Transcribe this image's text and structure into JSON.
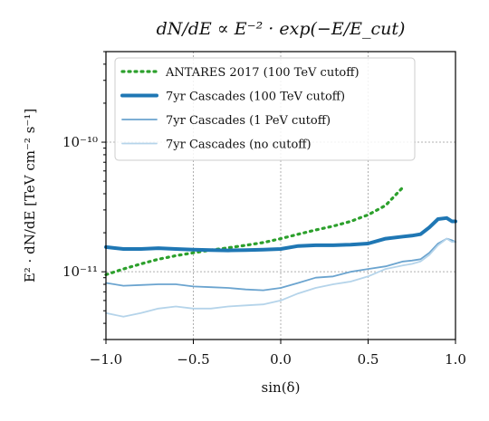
{
  "chart_data": {
    "type": "line",
    "title": "dN/dE ∝ E⁻² · exp(−E/E_cut)",
    "xlabel": "sin(δ)",
    "ylabel": "E² · dN/dE  [TeV cm⁻² s⁻¹]",
    "xlim": [
      -1.0,
      1.0
    ],
    "ylim": [
      3e-12,
      5e-10
    ],
    "yscale": "log",
    "grid": true,
    "legend_position": "top-left",
    "x_ticks": [
      -1.0,
      -0.5,
      0.0,
      0.5,
      1.0
    ],
    "x_tick_labels": [
      "−1.0",
      "−0.5",
      "0.0",
      "0.5",
      "1.0"
    ],
    "y_ticks": [
      1e-11,
      1e-10
    ],
    "y_tick_labels": [
      "10⁻¹¹",
      "10⁻¹⁰"
    ],
    "series": [
      {
        "name": "ANTARES 2017 (100 TeV cutoff)",
        "color": "#2ca02c",
        "style": "dotted",
        "x": [
          -1.0,
          -0.9,
          -0.8,
          -0.7,
          -0.6,
          -0.5,
          -0.4,
          -0.3,
          -0.2,
          -0.1,
          0.0,
          0.1,
          0.2,
          0.3,
          0.4,
          0.5,
          0.6,
          0.7
        ],
        "y": [
          9.5e-12,
          1.05e-11,
          1.15e-11,
          1.25e-11,
          1.33e-11,
          1.4e-11,
          1.47e-11,
          1.53e-11,
          1.6e-11,
          1.68e-11,
          1.8e-11,
          1.95e-11,
          2.1e-11,
          2.25e-11,
          2.45e-11,
          2.75e-11,
          3.25e-11,
          4.5e-11
        ]
      },
      {
        "name": "7yr Cascades (100 TeV cutoff)",
        "color": "#1f77b4",
        "style": "thick",
        "x": [
          -1.0,
          -0.9,
          -0.8,
          -0.7,
          -0.6,
          -0.5,
          -0.4,
          -0.3,
          -0.2,
          -0.1,
          0.0,
          0.1,
          0.2,
          0.3,
          0.4,
          0.5,
          0.6,
          0.7,
          0.75,
          0.8,
          0.85,
          0.9,
          0.95,
          0.98,
          1.0
        ],
        "y": [
          1.55e-11,
          1.5e-11,
          1.5e-11,
          1.52e-11,
          1.5e-11,
          1.48e-11,
          1.47e-11,
          1.46e-11,
          1.47e-11,
          1.48e-11,
          1.5e-11,
          1.58e-11,
          1.6e-11,
          1.6e-11,
          1.62e-11,
          1.65e-11,
          1.8e-11,
          1.87e-11,
          1.9e-11,
          1.95e-11,
          2.2e-11,
          2.55e-11,
          2.6e-11,
          2.45e-11,
          2.45e-11
        ]
      },
      {
        "name": "7yr Cascades (1 PeV cutoff)",
        "color": "#6ba4cf",
        "style": "solid",
        "x": [
          -1.0,
          -0.9,
          -0.8,
          -0.7,
          -0.6,
          -0.5,
          -0.4,
          -0.3,
          -0.2,
          -0.1,
          0.0,
          0.1,
          0.2,
          0.3,
          0.4,
          0.5,
          0.6,
          0.7,
          0.75,
          0.8,
          0.85,
          0.9,
          0.95,
          0.98,
          1.0
        ],
        "y": [
          8.2e-12,
          7.8e-12,
          7.9e-12,
          8e-12,
          8e-12,
          7.7e-12,
          7.6e-12,
          7.5e-12,
          7.3e-12,
          7.2e-12,
          7.5e-12,
          8.2e-12,
          9e-12,
          9.2e-12,
          1e-11,
          1.05e-11,
          1.1e-11,
          1.2e-11,
          1.22e-11,
          1.25e-11,
          1.4e-11,
          1.65e-11,
          1.8e-11,
          1.75e-11,
          1.7e-11
        ]
      },
      {
        "name": "7yr Cascades (no cutoff)",
        "color": "#b5d4ea",
        "style": "solid",
        "x": [
          -1.0,
          -0.9,
          -0.8,
          -0.7,
          -0.6,
          -0.5,
          -0.4,
          -0.3,
          -0.2,
          -0.1,
          0.0,
          0.1,
          0.2,
          0.3,
          0.4,
          0.5,
          0.6,
          0.7,
          0.75,
          0.8,
          0.85,
          0.9,
          0.95,
          0.98,
          1.0
        ],
        "y": [
          4.8e-12,
          4.5e-12,
          4.8e-12,
          5.2e-12,
          5.4e-12,
          5.2e-12,
          5.2e-12,
          5.4e-12,
          5.5e-12,
          5.6e-12,
          6e-12,
          6.8e-12,
          7.5e-12,
          8e-12,
          8.4e-12,
          9.2e-12,
          1.05e-11,
          1.12e-11,
          1.15e-11,
          1.2e-11,
          1.35e-11,
          1.6e-11,
          1.8e-11,
          1.7e-11,
          1.7e-11
        ]
      }
    ]
  }
}
